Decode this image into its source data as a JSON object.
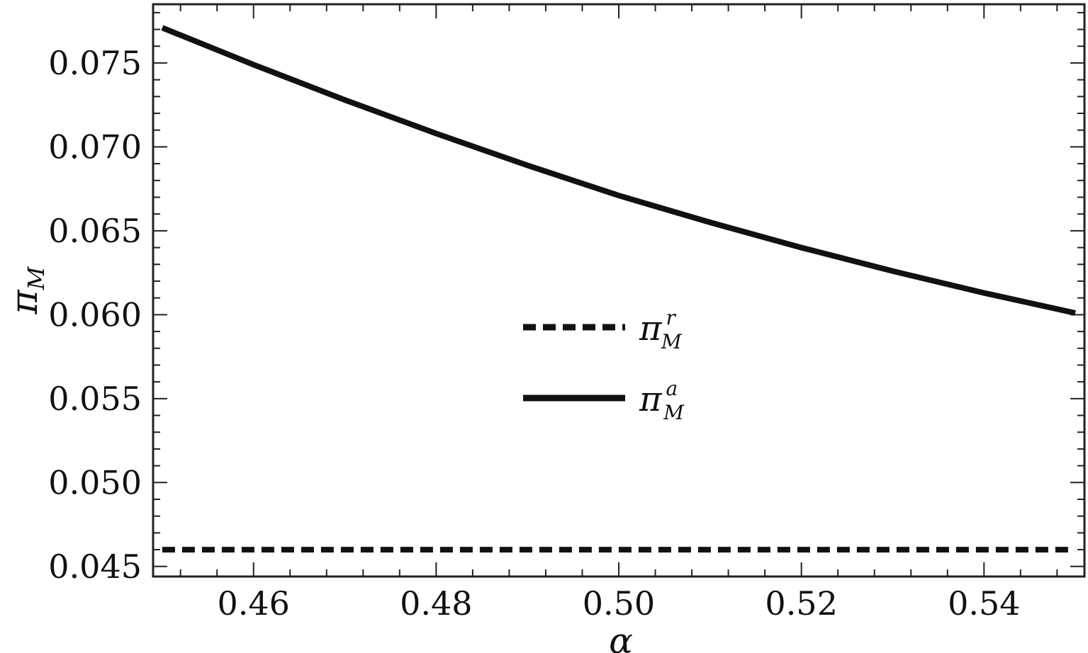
{
  "chart_data": {
    "type": "line",
    "title": "",
    "xlabel": "α",
    "ylabel_main": "π",
    "ylabel_sub": "M",
    "xlim": [
      0.449,
      0.551
    ],
    "ylim": [
      0.0444,
      0.0785
    ],
    "x_ticks": [
      0.46,
      0.48,
      0.5,
      0.52,
      0.54
    ],
    "x_tick_labels": [
      "0.46",
      "0.48",
      "0.50",
      "0.52",
      "0.54"
    ],
    "y_ticks": [
      0.045,
      0.05,
      0.055,
      0.06,
      0.065,
      0.07,
      0.075
    ],
    "y_tick_labels": [
      "0.045",
      "0.050",
      "0.055",
      "0.060",
      "0.065",
      "0.070",
      "0.075"
    ],
    "legend_position": "center",
    "series": [
      {
        "name_main": "π",
        "name_sup": "r",
        "name_sub": "M",
        "style": "dashed",
        "x": [
          0.45,
          0.55
        ],
        "y": [
          0.046,
          0.046
        ]
      },
      {
        "name_main": "π",
        "name_sup": "a",
        "name_sub": "M",
        "style": "solid",
        "x": [
          0.45,
          0.46,
          0.47,
          0.48,
          0.49,
          0.5,
          0.51,
          0.52,
          0.53,
          0.54,
          0.55
        ],
        "y": [
          0.0771,
          0.0749,
          0.0728,
          0.0708,
          0.0689,
          0.0671,
          0.0655,
          0.064,
          0.0626,
          0.0613,
          0.0601
        ]
      }
    ]
  }
}
